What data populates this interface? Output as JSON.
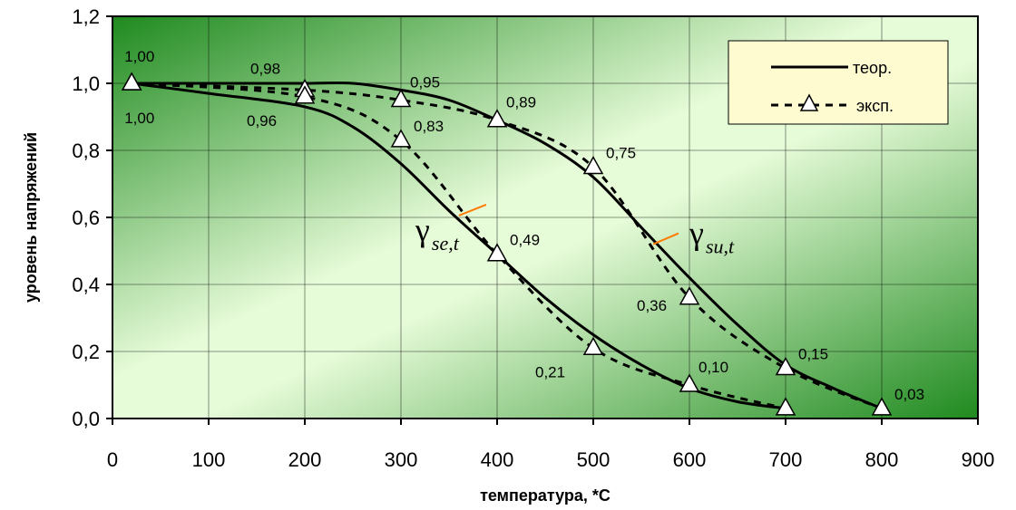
{
  "chart_data": {
    "type": "line",
    "xlabel": "температура, *С",
    "ylabel": "уровень напряжений",
    "xlim": [
      0,
      900
    ],
    "ylim": [
      0,
      1.2
    ],
    "x_ticks": [
      "0",
      "100",
      "200",
      "300",
      "400",
      "500",
      "600",
      "700",
      "800",
      "900"
    ],
    "y_ticks": [
      "0,0",
      "0,2",
      "0,4",
      "0,6",
      "0,8",
      "1,0",
      "1,2"
    ],
    "grid": true,
    "legend_position": "top-right",
    "legend": {
      "theor": "теор.",
      "exp": "эксп."
    },
    "background_colors": {
      "dark": "#1f8a1f",
      "light": "#e6fbd8"
    },
    "series": [
      {
        "name": "теор.",
        "curve": "γsu,t",
        "x": [
          20,
          100,
          200,
          250,
          300,
          350,
          400,
          450,
          500,
          550,
          600,
          650,
          700,
          750,
          800
        ],
        "y": [
          1.0,
          1.0,
          1.0,
          1.0,
          0.98,
          0.95,
          0.89,
          0.82,
          0.72,
          0.57,
          0.42,
          0.28,
          0.16,
          0.09,
          0.03
        ]
      },
      {
        "name": "теор.",
        "curve": "γse,t",
        "x": [
          20,
          100,
          200,
          250,
          300,
          350,
          400,
          450,
          500,
          550,
          600,
          650,
          700
        ],
        "y": [
          1.0,
          0.97,
          0.93,
          0.87,
          0.76,
          0.62,
          0.49,
          0.36,
          0.25,
          0.16,
          0.09,
          0.05,
          0.03
        ]
      },
      {
        "name": "эксп.",
        "curve": "γsu,t",
        "x": [
          20,
          200,
          300,
          400,
          500,
          600,
          700,
          800
        ],
        "y": [
          1.0,
          0.98,
          0.95,
          0.89,
          0.75,
          0.36,
          0.15,
          0.03
        ]
      },
      {
        "name": "эксп.",
        "curve": "γse,t",
        "x": [
          20,
          200,
          300,
          400,
          500,
          600,
          700
        ],
        "y": [
          1.0,
          0.96,
          0.83,
          0.49,
          0.21,
          0.1,
          0.03
        ]
      }
    ],
    "data_labels": [
      {
        "text": "1,00",
        "x": 20,
        "y": 1.0,
        "pos": "above"
      },
      {
        "text": "1,00",
        "x": 20,
        "y": 1.0,
        "pos": "below"
      },
      {
        "text": "0,98",
        "x": 200,
        "y": 0.98,
        "pos": "above-left"
      },
      {
        "text": "0,96",
        "x": 200,
        "y": 0.96,
        "pos": "below-left"
      },
      {
        "text": "0,95",
        "x": 300,
        "y": 0.95,
        "pos": "above-right"
      },
      {
        "text": "0,83",
        "x": 300,
        "y": 0.83,
        "pos": "right"
      },
      {
        "text": "0,89",
        "x": 400,
        "y": 0.89,
        "pos": "above-right"
      },
      {
        "text": "0,49",
        "x": 400,
        "y": 0.49,
        "pos": "right"
      },
      {
        "text": "0,75",
        "x": 500,
        "y": 0.75,
        "pos": "right"
      },
      {
        "text": "0,21",
        "x": 500,
        "y": 0.21,
        "pos": "below-left"
      },
      {
        "text": "0,36",
        "x": 600,
        "y": 0.36,
        "pos": "left"
      },
      {
        "text": "0,10",
        "x": 600,
        "y": 0.1,
        "pos": "above-right"
      },
      {
        "text": "0,15",
        "x": 700,
        "y": 0.15,
        "pos": "right"
      },
      {
        "text": "0,03",
        "x": 800,
        "y": 0.03,
        "pos": "right"
      }
    ],
    "annotations": [
      {
        "symbol": "γ",
        "subscript": "su,t",
        "x": 600,
        "y": 0.52
      },
      {
        "symbol": "γ",
        "subscript": "se,t",
        "x": 315,
        "y": 0.53
      }
    ]
  }
}
